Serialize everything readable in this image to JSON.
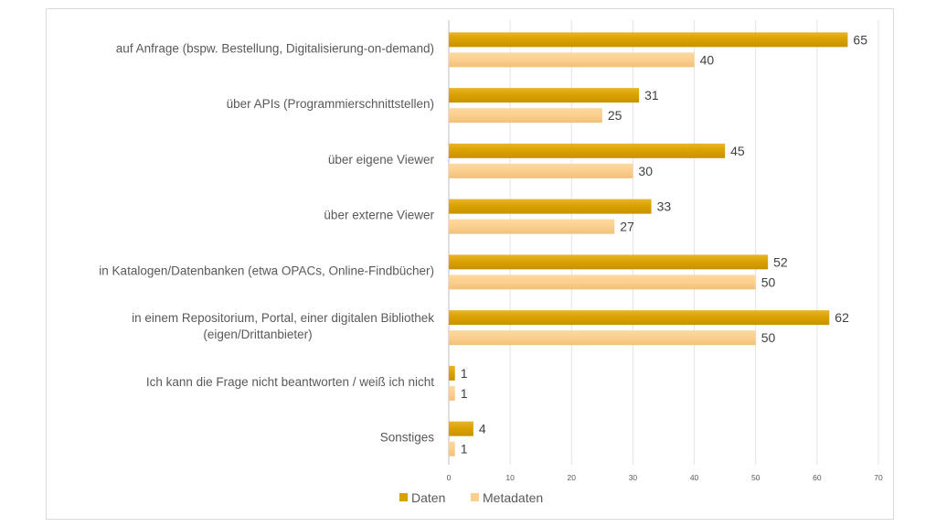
{
  "chart_data": {
    "type": "bar",
    "orientation": "horizontal",
    "title": "",
    "xlabel": "",
    "ylabel": "",
    "xlim": [
      0,
      70
    ],
    "xticks": [
      0,
      10,
      20,
      30,
      40,
      50,
      60,
      70
    ],
    "grid": true,
    "legend_position": "bottom",
    "categories": [
      [
        "auf Anfrage (bspw. Bestellung, Digitalisierung-on-demand)"
      ],
      [
        "über APIs (Programmierschnittstellen)"
      ],
      [
        "über eigene Viewer"
      ],
      [
        "über externe Viewer"
      ],
      [
        "in Katalogen/Datenbanken (etwa OPACs, Online-Findbücher)"
      ],
      [
        "in einem Repositorium, Portal, einer digitalen Bibliothek",
        "(eigen/Drittanbieter)"
      ],
      [
        "Ich kann die Frage nicht beantworten / weiß ich nicht"
      ],
      [
        "Sonstiges"
      ]
    ],
    "series": [
      {
        "name": "Daten",
        "color": "#D9A000",
        "values": [
          65,
          31,
          45,
          33,
          52,
          62,
          1,
          4
        ]
      },
      {
        "name": "Metadaten",
        "color": "#FAC985",
        "values": [
          40,
          25,
          30,
          27,
          50,
          50,
          1,
          1
        ]
      }
    ]
  }
}
